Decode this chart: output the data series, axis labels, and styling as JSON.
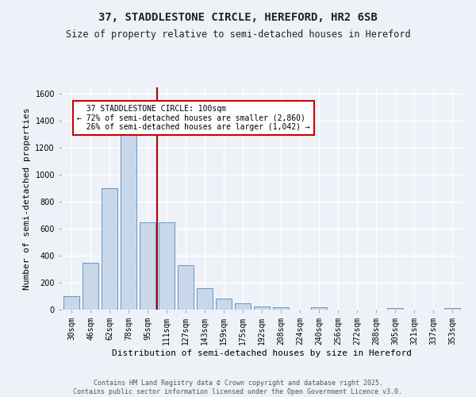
{
  "title1": "37, STADDLESTONE CIRCLE, HEREFORD, HR2 6SB",
  "title2": "Size of property relative to semi-detached houses in Hereford",
  "xlabel": "Distribution of semi-detached houses by size in Hereford",
  "ylabel": "Number of semi-detached properties",
  "bar_labels": [
    "30sqm",
    "46sqm",
    "62sqm",
    "78sqm",
    "95sqm",
    "111sqm",
    "127sqm",
    "143sqm",
    "159sqm",
    "175sqm",
    "192sqm",
    "208sqm",
    "224sqm",
    "240sqm",
    "256sqm",
    "272sqm",
    "288sqm",
    "305sqm",
    "321sqm",
    "337sqm",
    "353sqm"
  ],
  "bar_values": [
    100,
    350,
    900,
    1300,
    650,
    650,
    330,
    160,
    80,
    45,
    25,
    15,
    0,
    15,
    0,
    0,
    0,
    10,
    0,
    0,
    10
  ],
  "bar_color": "#c8d8ea",
  "bar_edge_color": "#5588bb",
  "property_line_x": 4.5,
  "property_label": "37 STADDLESTONE CIRCLE: 100sqm",
  "pct_smaller": "72% of semi-detached houses are smaller (2,860)",
  "pct_larger": "26% of semi-detached houses are larger (1,042)",
  "annotation_box_color": "#ffffff",
  "annotation_box_edge": "#cc0000",
  "vline_color": "#aa0000",
  "footer1": "Contains HM Land Registry data © Crown copyright and database right 2025.",
  "footer2": "Contains public sector information licensed under the Open Government Licence v3.0.",
  "ylim": [
    0,
    1650
  ],
  "yticks": [
    0,
    200,
    400,
    600,
    800,
    1000,
    1200,
    1400,
    1600
  ],
  "bg_color": "#eef2f8",
  "grid_color": "#ffffff",
  "title_fontsize": 10,
  "subtitle_fontsize": 8.5,
  "axis_label_fontsize": 8,
  "tick_fontsize": 7,
  "footer_fontsize": 6
}
